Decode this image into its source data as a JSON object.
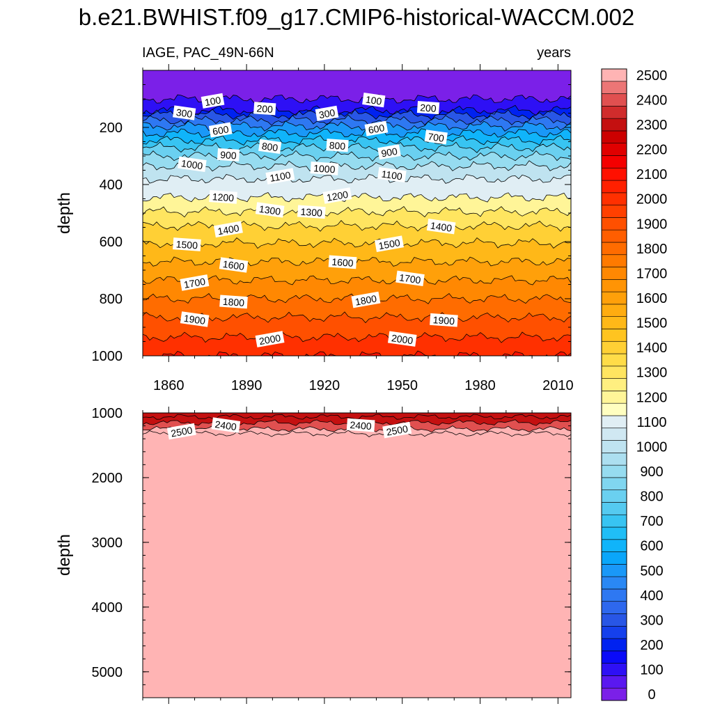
{
  "chart_data": {
    "type": "contour",
    "title": "b.e21.BWHIST.f09_g17.CMIP6-historical-WACCM.002",
    "variable_label": "IAGE, PAC_49N-66N",
    "units_label": "years",
    "xlabel": "",
    "ylabel": "depth",
    "x_ticks": [
      1860,
      1890,
      1920,
      1950,
      1980,
      2010
    ],
    "xlim": [
      1850,
      2015
    ],
    "panels": [
      {
        "name": "upper-depth-panel",
        "ylim": [
          0,
          1000
        ],
        "y_ticks": [
          200,
          400,
          600,
          800,
          1000
        ],
        "contour_depths": [
          {
            "level": 100,
            "depth": 100
          },
          {
            "level": 200,
            "depth": 140
          },
          {
            "level": 300,
            "depth": 155
          },
          {
            "level": 400,
            "depth": 175
          },
          {
            "level": 500,
            "depth": 195
          },
          {
            "level": 600,
            "depth": 220
          },
          {
            "level": 700,
            "depth": 245
          },
          {
            "level": 800,
            "depth": 270
          },
          {
            "level": 900,
            "depth": 300
          },
          {
            "level": 1000,
            "depth": 335
          },
          {
            "level": 1100,
            "depth": 380
          },
          {
            "level": 1200,
            "depth": 445
          },
          {
            "level": 1300,
            "depth": 495
          },
          {
            "level": 1400,
            "depth": 545
          },
          {
            "level": 1500,
            "depth": 605
          },
          {
            "level": 1600,
            "depth": 670
          },
          {
            "level": 1700,
            "depth": 735
          },
          {
            "level": 1800,
            "depth": 800
          },
          {
            "level": 1900,
            "depth": 865
          },
          {
            "level": 2000,
            "depth": 935
          },
          {
            "level": 2100,
            "depth": 1000
          }
        ],
        "contour_labels": [
          {
            "text": "100",
            "year": 1877,
            "depth": 108
          },
          {
            "text": "300",
            "year": 1866,
            "depth": 150
          },
          {
            "text": "200",
            "year": 1897,
            "depth": 135
          },
          {
            "text": "300",
            "year": 1921,
            "depth": 152
          },
          {
            "text": "100",
            "year": 1939,
            "depth": 105
          },
          {
            "text": "200",
            "year": 1960,
            "depth": 132
          },
          {
            "text": "600",
            "year": 1880,
            "depth": 210
          },
          {
            "text": "800",
            "year": 1899,
            "depth": 268
          },
          {
            "text": "800",
            "year": 1925,
            "depth": 264
          },
          {
            "text": "600",
            "year": 1940,
            "depth": 205
          },
          {
            "text": "700",
            "year": 1963,
            "depth": 235
          },
          {
            "text": "900",
            "year": 1883,
            "depth": 297
          },
          {
            "text": "900",
            "year": 1945,
            "depth": 287
          },
          {
            "text": "1000",
            "year": 1869,
            "depth": 330
          },
          {
            "text": "1000",
            "year": 1920,
            "depth": 345
          },
          {
            "text": "1100",
            "year": 1903,
            "depth": 372
          },
          {
            "text": "1100",
            "year": 1946,
            "depth": 367
          },
          {
            "text": "1200",
            "year": 1881,
            "depth": 445
          },
          {
            "text": "1200",
            "year": 1925,
            "depth": 440
          },
          {
            "text": "1300",
            "year": 1899,
            "depth": 490
          },
          {
            "text": "1300",
            "year": 1915,
            "depth": 497
          },
          {
            "text": "1400",
            "year": 1883,
            "depth": 558
          },
          {
            "text": "1400",
            "year": 1965,
            "depth": 548
          },
          {
            "text": "1500",
            "year": 1867,
            "depth": 611
          },
          {
            "text": "1500",
            "year": 1945,
            "depth": 609
          },
          {
            "text": "1600",
            "year": 1885,
            "depth": 683
          },
          {
            "text": "1600",
            "year": 1927,
            "depth": 673
          },
          {
            "text": "1700",
            "year": 1870,
            "depth": 745
          },
          {
            "text": "1700",
            "year": 1953,
            "depth": 730
          },
          {
            "text": "1800",
            "year": 1885,
            "depth": 812
          },
          {
            "text": "1800",
            "year": 1936,
            "depth": 805
          },
          {
            "text": "1900",
            "year": 1870,
            "depth": 873
          },
          {
            "text": "1900",
            "year": 1966,
            "depth": 876
          },
          {
            "text": "2000",
            "year": 1899,
            "depth": 943
          },
          {
            "text": "2000",
            "year": 1950,
            "depth": 942
          }
        ]
      },
      {
        "name": "lower-depth-panel",
        "ylim": [
          1000,
          5400
        ],
        "y_ticks": [
          1000,
          2000,
          3000,
          4000,
          5000
        ],
        "contour_depths": [
          {
            "level": 2300,
            "depth": 1060
          },
          {
            "level": 2400,
            "depth": 1150
          },
          {
            "level": 2500,
            "depth": 1250
          },
          {
            "level": 2550,
            "depth": 1320
          }
        ],
        "contour_labels": [
          {
            "text": "2500",
            "year": 1865,
            "depth": 1290
          },
          {
            "text": "2400",
            "year": 1882,
            "depth": 1195
          },
          {
            "text": "2400",
            "year": 1934,
            "depth": 1195
          },
          {
            "text": "2500",
            "year": 1948,
            "depth": 1270
          }
        ]
      }
    ],
    "colorbar": {
      "levels": [
        0,
        50,
        100,
        150,
        200,
        250,
        300,
        350,
        400,
        450,
        500,
        550,
        600,
        650,
        700,
        750,
        800,
        850,
        900,
        950,
        1000,
        1050,
        1100,
        1150,
        1200,
        1250,
        1300,
        1350,
        1400,
        1450,
        1500,
        1550,
        1600,
        1650,
        1700,
        1750,
        1800,
        1850,
        1900,
        1950,
        2000,
        2050,
        2100,
        2150,
        2200,
        2250,
        2300,
        2350,
        2400,
        2450,
        2500,
        2550
      ],
      "labels": [
        "0",
        "100",
        "200",
        "300",
        "400",
        "500",
        "600",
        "700",
        "800",
        "900",
        "1000",
        "1100",
        "1200",
        "1300",
        "1400",
        "1500",
        "1600",
        "1700",
        "1800",
        "1900",
        "2000",
        "2100",
        "2200",
        "2300",
        "2400",
        "2500"
      ],
      "colors": [
        "#7b20e8",
        "#5a18f0",
        "#2e10f5",
        "#0a0af8",
        "#0022f0",
        "#1540ec",
        "#2856e6",
        "#2e68ee",
        "#2e78f2",
        "#2a88f4",
        "#1a98f8",
        "#0aa6fa",
        "#10b4fa",
        "#20bef6",
        "#38c4f2",
        "#55caf0",
        "#6ad0f0",
        "#80d6f0",
        "#96dcf0",
        "#acdff0",
        "#bfe3f0",
        "#d0e8f2",
        "#e0eef4",
        "#fffec0",
        "#fff598",
        "#ffef80",
        "#ffe560",
        "#ffdc48",
        "#ffd035",
        "#ffc420",
        "#ffb818",
        "#ffac10",
        "#ffa00a",
        "#ff9405",
        "#ff8802",
        "#ff7a00",
        "#ff6c00",
        "#ff5e00",
        "#ff5000",
        "#ff4000",
        "#ff3000",
        "#ff2000",
        "#ff1000",
        "#f40000",
        "#e00000",
        "#cc0000",
        "#c41010",
        "#d02c2c",
        "#e05050",
        "#ec7676",
        "#ffb4b4"
      ]
    }
  }
}
